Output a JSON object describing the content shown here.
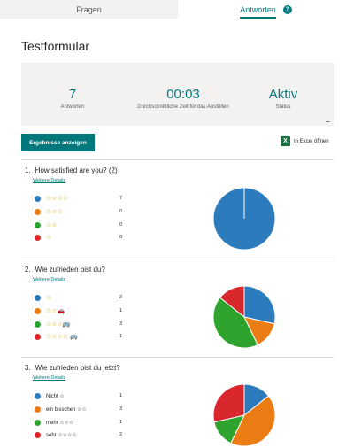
{
  "tabs": {
    "questions": "Fragen",
    "responses": "Antworten",
    "responses_badge": "?"
  },
  "form_title": "Testformular",
  "summary": {
    "responses_value": "7",
    "responses_label": "Antworten",
    "avg_time_value": "00:03",
    "avg_time_label": "Durchschnittliche Zeit für das Ausfüllen",
    "status_value": "Aktiv",
    "status_label": "Status",
    "more": "..."
  },
  "actions": {
    "view_results": "Ergebnisse anzeigen",
    "open_excel": "In Excel öffnen",
    "excel_glyph": "X"
  },
  "colors": {
    "accent": "#03787c",
    "blue": "#2b7bbd",
    "orange": "#ea7c13",
    "green": "#2ea32e",
    "red": "#d9272e",
    "star": "#c19c00"
  },
  "questions": [
    {
      "number": "1.",
      "title": "How satisfied are you? (2)",
      "details": "Weitere Details",
      "options": [
        {
          "label": "☆☆☆☆",
          "count": "7",
          "color": "#2b7bbd"
        },
        {
          "label": "☆☆☆",
          "count": "0",
          "color": "#ea7c13"
        },
        {
          "label": "☆☆",
          "count": "0",
          "color": "#2ea32e"
        },
        {
          "label": "☆",
          "count": "0",
          "color": "#d9272e"
        }
      ]
    },
    {
      "number": "2.",
      "title": "Wie zufrieden bist du?",
      "details": "Weitere Details",
      "options": [
        {
          "label": "☆",
          "count": "2",
          "color": "#2b7bbd"
        },
        {
          "label": "☆☆🚗",
          "count": "1",
          "color": "#ea7c13"
        },
        {
          "label": "☆☆☆🚌",
          "count": "3",
          "color": "#2ea32e"
        },
        {
          "label": "☆☆☆☆ 🚌",
          "count": "1",
          "color": "#d9272e"
        }
      ]
    },
    {
      "number": "3.",
      "title": "Wie zufrieden bist du jetzt?",
      "details": "Weitere Details",
      "options": [
        {
          "label": "Nicht ☆",
          "count": "1",
          "color": "#2b7bbd"
        },
        {
          "label": "ein bisschen ☆☆",
          "count": "3",
          "color": "#ea7c13"
        },
        {
          "label": "mehr ☆☆☆",
          "count": "1",
          "color": "#2ea32e"
        },
        {
          "label": "sehr ☆☆☆☆",
          "count": "2",
          "color": "#d9272e"
        }
      ]
    }
  ],
  "chart_data": [
    {
      "type": "pie",
      "categories": [
        "☆☆☆☆",
        "☆☆☆",
        "☆☆",
        "☆"
      ],
      "values": [
        7,
        0,
        0,
        0
      ]
    },
    {
      "type": "pie",
      "categories": [
        "☆",
        "☆☆🚗",
        "☆☆☆🚌",
        "☆☆☆☆ 🚌"
      ],
      "values": [
        2,
        1,
        3,
        1
      ]
    },
    {
      "type": "pie",
      "categories": [
        "Nicht ☆",
        "ein bisschen ☆☆",
        "mehr ☆☆☆",
        "sehr ☆☆☆☆"
      ],
      "values": [
        1,
        3,
        1,
        2
      ]
    }
  ]
}
